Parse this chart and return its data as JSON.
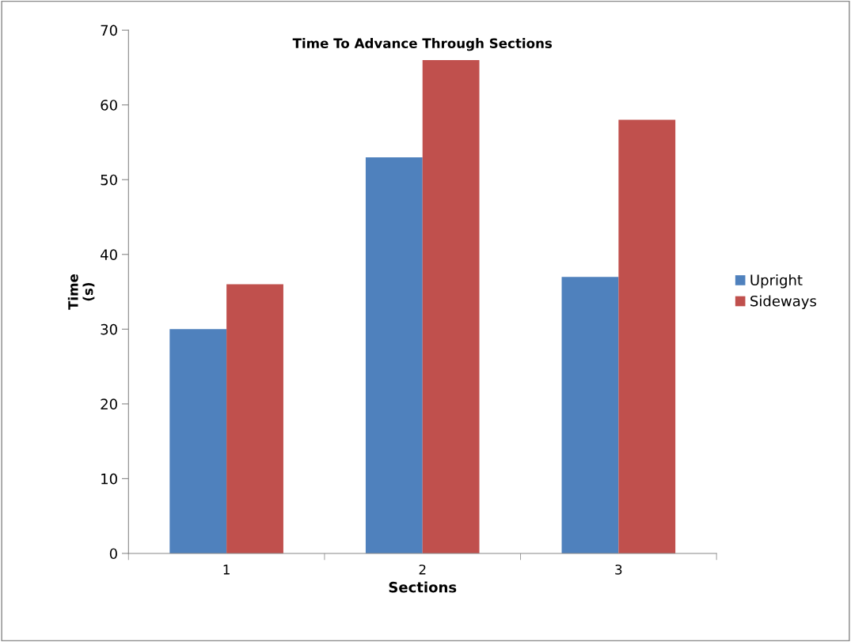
{
  "chart_data": {
    "type": "bar",
    "title": "Time To Advance Through Sections",
    "xlabel": "Sections",
    "ylabel": "Time\n(s)",
    "categories": [
      "1",
      "2",
      "3"
    ],
    "series": [
      {
        "name": "Upright",
        "color": "#4f81bd",
        "values": [
          30,
          53,
          37
        ]
      },
      {
        "name": "Sideways",
        "color": "#c0504d",
        "values": [
          36,
          66,
          58
        ]
      }
    ],
    "ylim": [
      0,
      70
    ],
    "yticks": [
      0,
      10,
      20,
      30,
      40,
      50,
      60,
      70
    ],
    "grid": false,
    "legend": "right"
  }
}
